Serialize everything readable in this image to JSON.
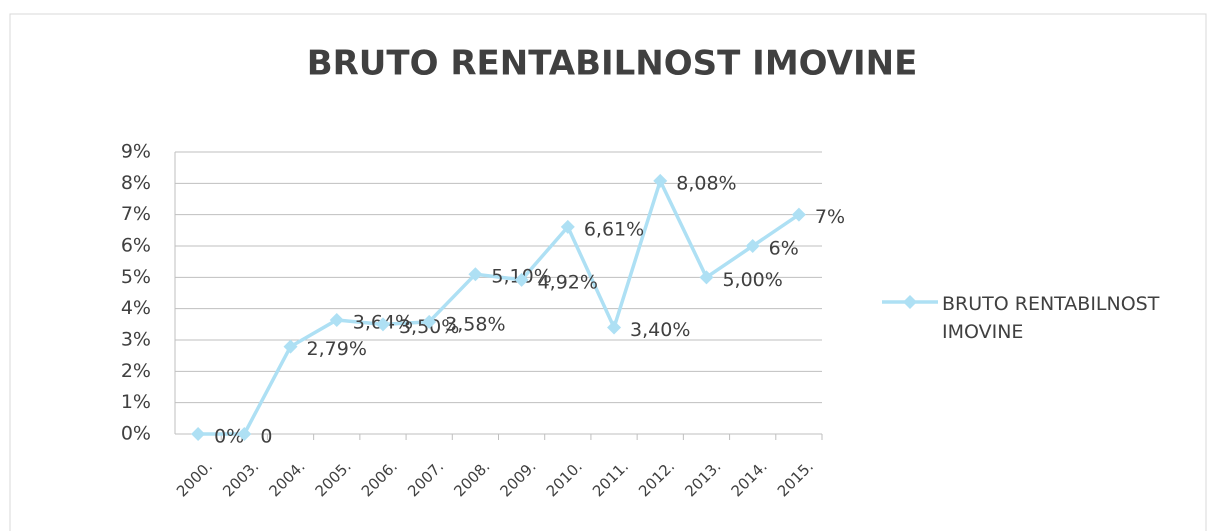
{
  "chart_data": {
    "type": "line",
    "title": "BRUTO RENTABILNOST IMOVINE",
    "categories": [
      "2000.",
      "2003.",
      "2004.",
      "2005.",
      "2006.",
      "2007.",
      "2008.",
      "2009.",
      "2010.",
      "2011.",
      "2012.",
      "2013.",
      "2014.",
      "2015."
    ],
    "series": [
      {
        "name": "BRUTO RENTABILNOST IMOVINE",
        "color": "#aee0f4",
        "values": [
          0,
          0,
          2.79,
          3.64,
          3.5,
          3.58,
          5.1,
          4.92,
          6.61,
          3.4,
          8.08,
          5.0,
          6,
          7
        ],
        "value_labels": [
          "0%",
          "0",
          "2,79%",
          "3,64%",
          "3,50%",
          "3,58%",
          "5,10%",
          "4,92%",
          "6,61%",
          "3,40%",
          "8,08%",
          "5,00%",
          "6%",
          "7%"
        ]
      }
    ],
    "ylim": [
      0,
      9
    ],
    "yticks": [
      {
        "value": 0,
        "label": "0%"
      },
      {
        "value": 1,
        "label": "1%"
      },
      {
        "value": 2,
        "label": "2%"
      },
      {
        "value": 3,
        "label": "3%"
      },
      {
        "value": 4,
        "label": "4%"
      },
      {
        "value": 5,
        "label": "5%"
      },
      {
        "value": 6,
        "label": "6%"
      },
      {
        "value": 7,
        "label": "7%"
      },
      {
        "value": 8,
        "label": "8%"
      },
      {
        "value": 9,
        "label": "9%"
      }
    ],
    "grid": true,
    "legend": "right"
  }
}
